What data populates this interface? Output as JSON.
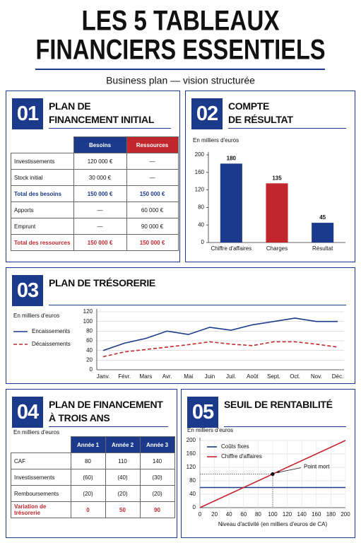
{
  "header": {
    "title_lines": [
      "LES 5 TABLEAUX",
      "FINANCIERS ESSENTIELS"
    ],
    "subtitle": "Business plan — vision structurée"
  },
  "panels": [
    {
      "number": "01",
      "title": [
        "PLAN DE",
        "FINANCEMENT INITIAL"
      ]
    },
    {
      "number": "02",
      "title": [
        "COMPTE",
        "DE RÉSULTAT"
      ]
    },
    {
      "number": "03",
      "title": [
        "PLAN DE TRÉSORERIE"
      ]
    },
    {
      "number": "04",
      "title": [
        "PLAN DE FINANCEMENT",
        "À TROIS ANS"
      ]
    },
    {
      "number": "05",
      "title": [
        "SEUIL DE RENTABILITÉ"
      ]
    }
  ],
  "table1": {
    "columns": [
      "Besoins",
      "Ressources"
    ],
    "rows": [
      [
        "Investissements",
        "120 000 €",
        "—"
      ],
      [
        "Stock initial",
        "30 000 €",
        "—"
      ],
      [
        "Total des besoins",
        "150 000 €",
        "150 000 €"
      ],
      [
        "Apports",
        "—",
        "60 000 €"
      ],
      [
        "Emprunt",
        "—",
        "90 000 €"
      ],
      [
        "Total des ressources",
        "150 000 €",
        "150 000 €"
      ]
    ]
  },
  "table4": {
    "note": "En milliers d'euros",
    "columns": [
      "Année 1",
      "Année 2",
      "Année 3"
    ],
    "rows": [
      [
        "CAF",
        "80",
        "110",
        "140"
      ],
      [
        "Investissements",
        "(60)",
        "(40)",
        "(30)"
      ],
      [
        "Remboursements",
        "(20)",
        "(20)",
        "(20)"
      ],
      [
        "Variation de trésorerie",
        "0",
        "50",
        "90"
      ]
    ]
  },
  "chart_data": [
    {
      "type": "bar",
      "ylabel": "En milliers d'euros",
      "categories": [
        "Chiffre d'affaires",
        "Charges",
        "Résultat"
      ],
      "values": [
        180,
        135,
        45
      ],
      "colors": [
        "#1b3a8b",
        "#c1272d",
        "#1b3a8b"
      ],
      "ylim": [
        0,
        200
      ],
      "yticks": [
        0,
        40,
        80,
        120,
        160,
        200
      ],
      "grid": false
    },
    {
      "type": "line",
      "ylabel": "En milliers d'euros",
      "categories": [
        "Janv.",
        "Févr.",
        "Mars",
        "Avr.",
        "Mai",
        "Juin",
        "Juil.",
        "Août",
        "Sept.",
        "Oct.",
        "Nov.",
        "Déc."
      ],
      "series": [
        {
          "name": "Encaissements",
          "color": "#1b3a8b",
          "dash": false,
          "values": [
            40,
            55,
            65,
            80,
            73,
            88,
            82,
            93,
            100,
            107,
            100,
            100
          ]
        },
        {
          "name": "Décaissements",
          "color": "#c1272d",
          "dash": true,
          "values": [
            27,
            37,
            42,
            47,
            52,
            58,
            53,
            50,
            58,
            58,
            53,
            47
          ]
        }
      ],
      "ylim": [
        0,
        120
      ],
      "yticks": [
        0,
        20,
        40,
        60,
        80,
        100,
        120
      ],
      "grid": true,
      "legend": "left"
    },
    {
      "type": "line",
      "ylabel": "En milliers d'euros",
      "xlabel": "Niveau d'activité (en milliers d'euros de CA)",
      "x": [
        0,
        200
      ],
      "series": [
        {
          "name": "Coûts fixes",
          "color": "#1b3a8b",
          "dash": false,
          "values": [
            60,
            60
          ]
        },
        {
          "name": "Chiffre d'affaires",
          "color": "#c1272d",
          "dash": false,
          "values": [
            0,
            200
          ]
        }
      ],
      "xlim": [
        0,
        200
      ],
      "xticks": [
        0,
        20,
        40,
        60,
        80,
        100,
        120,
        140,
        160,
        180,
        200
      ],
      "ylim": [
        0,
        200
      ],
      "yticks": [
        0,
        40,
        80,
        120,
        160,
        200
      ],
      "grid": true,
      "legend": "upper left",
      "annotations": [
        {
          "text": "Point mort",
          "x": 100,
          "y": 100
        }
      ]
    }
  ]
}
